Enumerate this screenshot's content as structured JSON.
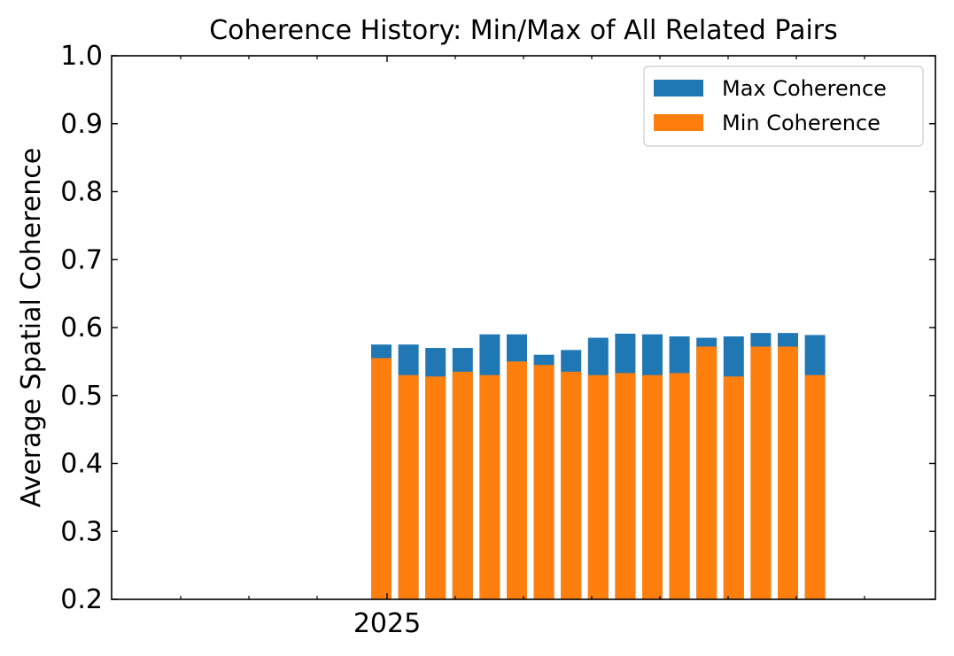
{
  "chart_data": {
    "type": "bar",
    "stacked_overlay": true,
    "title": "Coherence History: Min/Max of All Related Pairs",
    "xlabel": "",
    "ylabel": "Average Spatial Coherence",
    "ylim": [
      0.2,
      1.0
    ],
    "yticks": [
      "0.2",
      "0.3",
      "0.4",
      "0.5",
      "0.6",
      "0.7",
      "0.8",
      "0.9",
      "1.0"
    ],
    "xtick_labels": [
      "2025"
    ],
    "grid": false,
    "legend_position": "top-right",
    "series": [
      {
        "name": "Max Coherence",
        "color": "#1f77b4",
        "values": [
          0.575,
          0.575,
          0.57,
          0.57,
          0.59,
          0.59,
          0.56,
          0.567,
          0.585,
          0.591,
          0.59,
          0.587,
          0.585,
          0.587,
          0.592,
          0.592,
          0.589
        ]
      },
      {
        "name": "Min Coherence",
        "color": "#ff7f0e",
        "values": [
          0.555,
          0.53,
          0.528,
          0.535,
          0.53,
          0.55,
          0.545,
          0.535,
          0.53,
          0.533,
          0.53,
          0.533,
          0.572,
          0.528,
          0.572,
          0.572,
          0.53
        ]
      }
    ]
  }
}
